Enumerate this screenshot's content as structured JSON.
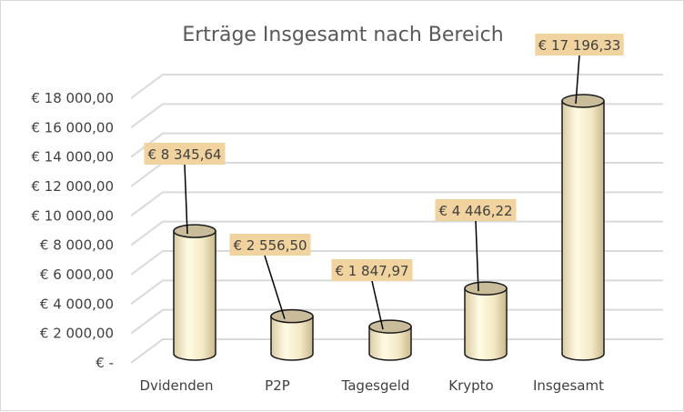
{
  "chart_data": {
    "type": "bar",
    "style": "3d-cylinder",
    "title": "Erträge Insgesamt nach Bereich",
    "categories": [
      "Dvidenden",
      "P2P",
      "Tagesgeld",
      "Krypto",
      "Insgesamt"
    ],
    "values": [
      8345.64,
      2556.5,
      1847.97,
      4446.22,
      17196.33
    ],
    "data_labels": [
      "€ 8 345,64",
      "€ 2 556,50",
      "€ 1 847,97",
      "€ 4 446,22",
      "€ 17 196,33"
    ],
    "y_ticks": [
      0,
      2000,
      4000,
      6000,
      8000,
      10000,
      12000,
      14000,
      16000,
      18000
    ],
    "y_tick_labels": [
      "€ -",
      "€ 2 000,00",
      "€ 4 000,00",
      "€ 6 000,00",
      "€ 8 000,00",
      "€ 10 000,00",
      "€ 12 000,00",
      "€ 14 000,00",
      "€ 16 000,00",
      "€ 18 000,00"
    ],
    "ylim": [
      0,
      18000
    ],
    "grid": true,
    "xlabel": "",
    "ylabel": "",
    "colors": {
      "bar": "#fdf5d6",
      "bar_top": "#c9bc9a",
      "label_bg": "#f0d39e",
      "grid": "#d9d9d9",
      "text": "#404040",
      "title": "#595959"
    }
  }
}
